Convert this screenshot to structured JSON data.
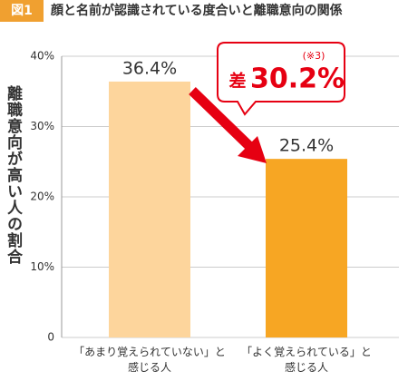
{
  "chart_data": {
    "type": "bar",
    "badge": "図1",
    "title": "顔と名前が認識されている度合いと離職意向の関係",
    "y_label": "離職意向が高い人の割合",
    "categories": [
      "「あまり覚えられていない」と\n感じる人",
      "「よく覚えられている」と\n感じる人"
    ],
    "values": [
      36.4,
      25.4
    ],
    "value_labels": [
      "36.4%",
      "25.4%"
    ],
    "colors": [
      "#fdd59c",
      "#f7a623"
    ],
    "ylim": [
      0,
      40
    ],
    "yticks": [
      0,
      {
        "value": 10,
        "label": "10%"
      },
      {
        "value": 20,
        "label": "20%"
      },
      {
        "value": 30,
        "label": "30%"
      },
      {
        "value": 40,
        "label": "40%"
      }
    ],
    "grid": true,
    "annotation": {
      "prefix": "差",
      "value_label": "30.2%",
      "note": "(※3)"
    }
  }
}
